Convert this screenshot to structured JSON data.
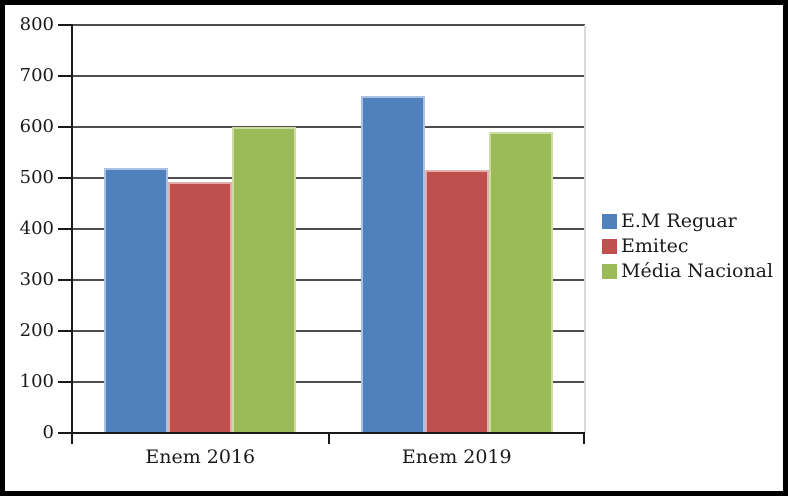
{
  "chart_data": {
    "type": "bar",
    "categories": [
      "Enem 2016",
      "Enem 2019"
    ],
    "series": [
      {
        "name": "E.M Reguar",
        "color": "#4F81BD",
        "border_color": "#A9C2E3",
        "values": [
          520,
          661
        ]
      },
      {
        "name": "Emitec",
        "color": "#C0504D",
        "border_color": "#E2AFAE",
        "values": [
          493,
          516
        ]
      },
      {
        "name": "Média Nacional",
        "color": "#9BBB59",
        "border_color": "#CCDDA4",
        "values": [
          600,
          591
        ]
      }
    ],
    "title": "",
    "xlabel": "",
    "ylabel": "",
    "ylim": [
      0,
      800
    ],
    "yticks": [
      0,
      100,
      200,
      300,
      400,
      500,
      600,
      700,
      800
    ],
    "grid": true,
    "legend_position": "right"
  },
  "colors": {
    "background": "#ffffff",
    "frame_border": "#000000",
    "gridline": "#4d4d4d",
    "axis": "#1a1a1a",
    "plot_right_border": "#d9d9d9",
    "text": "#1a1a1a"
  }
}
